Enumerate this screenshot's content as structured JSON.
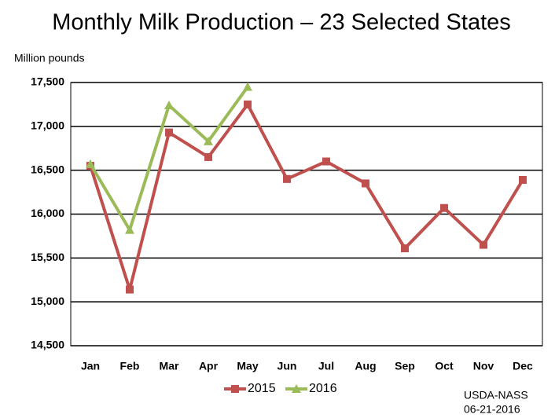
{
  "chart_data": {
    "type": "line",
    "title": "Monthly Milk Production – 23 Selected States",
    "y_label": "Million pounds",
    "source": [
      "USDA-NASS",
      "06-21-2016"
    ],
    "categories": [
      "Jan",
      "Feb",
      "Mar",
      "Apr",
      "May",
      "Jun",
      "Jul",
      "Aug",
      "Sep",
      "Oct",
      "Nov",
      "Dec"
    ],
    "series": [
      {
        "name": "2015",
        "color": "#c0504d",
        "marker": "square",
        "values": [
          16550,
          15140,
          16930,
          16650,
          17250,
          16400,
          16600,
          16350,
          15610,
          16070,
          15650,
          16390
        ]
      },
      {
        "name": "2016",
        "color": "#9bbb59",
        "marker": "triangle",
        "values": [
          16570,
          15820,
          17240,
          16830,
          17450,
          null,
          null,
          null,
          null,
          null,
          null,
          null
        ]
      }
    ],
    "ylim": [
      14500,
      17500
    ],
    "yticks": [
      {
        "value": 14500,
        "label": "14,500"
      },
      {
        "value": 15000,
        "label": "15,000"
      },
      {
        "value": 15500,
        "label": "15,500"
      },
      {
        "value": 16000,
        "label": "16,000"
      },
      {
        "value": 16500,
        "label": "16,500"
      },
      {
        "value": 17000,
        "label": "17,000"
      },
      {
        "value": 17500,
        "label": "17,500"
      }
    ],
    "grid": true,
    "legend": "bottom"
  }
}
